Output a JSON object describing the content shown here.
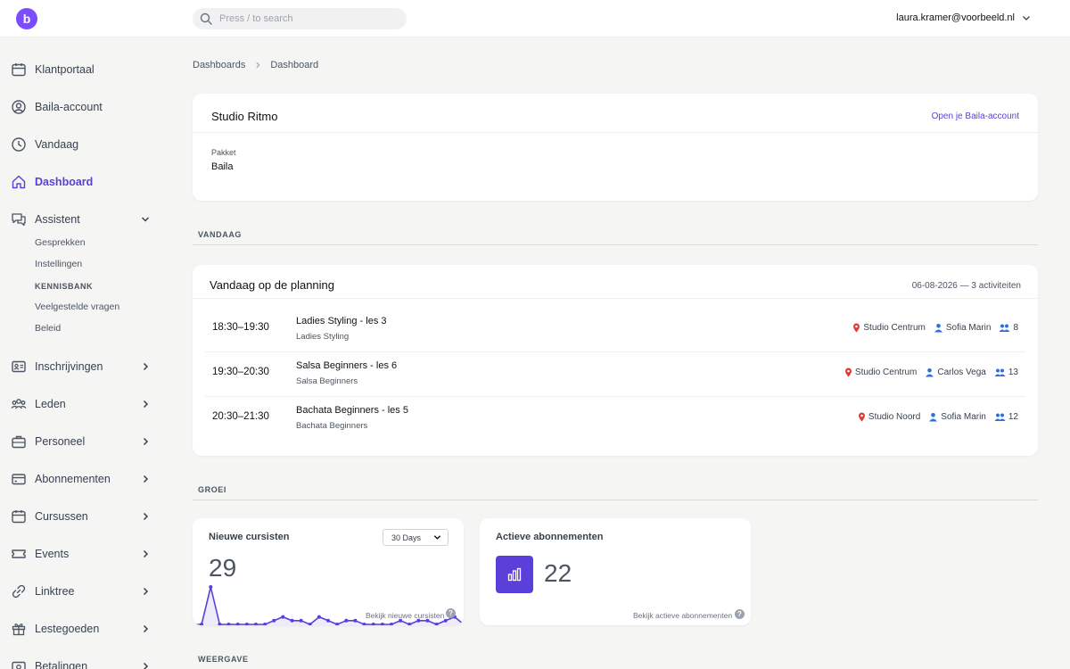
{
  "topbar": {
    "logo_letter": "b",
    "search_placeholder": "Press / to search",
    "user_email": "laura.kramer@voorbeeld.nl"
  },
  "sidebar": {
    "items": [
      {
        "label": "Klantportaal",
        "icon": "calendar-icon"
      },
      {
        "label": "Baila-account",
        "icon": "user-circle-icon"
      },
      {
        "label": "Vandaag",
        "icon": "clock-icon"
      },
      {
        "label": "Dashboard",
        "icon": "home-icon",
        "active": true
      },
      {
        "label": "Assistent",
        "icon": "chat-icon",
        "expanded": true
      },
      {
        "label": "Inschrijvingen",
        "icon": "id-card-icon"
      },
      {
        "label": "Leden",
        "icon": "users-icon"
      },
      {
        "label": "Personeel",
        "icon": "briefcase-icon"
      },
      {
        "label": "Abonnementen",
        "icon": "credit-card-icon"
      },
      {
        "label": "Cursussen",
        "icon": "calendar-icon"
      },
      {
        "label": "Events",
        "icon": "ticket-icon"
      },
      {
        "label": "Linktree",
        "icon": "link-icon"
      },
      {
        "label": "Lestegoeden",
        "icon": "gift-icon"
      },
      {
        "label": "Betalingen",
        "icon": "wallet-icon"
      }
    ],
    "assistent_sub": [
      "Gesprekken",
      "Instellingen",
      "KENNISBANK",
      "Veelgestelde vragen",
      "Beleid"
    ]
  },
  "breadcrumb": [
    "Dashboards",
    "Dashboard"
  ],
  "studio": {
    "name": "Studio Ritmo",
    "link": "Open je Baila-account",
    "pakket_label": "Pakket",
    "pakket_value": "Baila"
  },
  "sections": {
    "vandaag": "VANDAAG",
    "groei": "GROEI",
    "weergave": "WEERGAVE"
  },
  "planning": {
    "title": "Vandaag op de planning",
    "meta": "06-08-2026 — 3 activiteiten",
    "rows": [
      {
        "time": "18:30–19:30",
        "name": "Ladies Styling - les 3",
        "course": "Ladies Styling",
        "location": "Studio Centrum",
        "teacher": "Sofia Marin",
        "count": "8"
      },
      {
        "time": "19:30–20:30",
        "name": "Salsa Beginners - les 6",
        "course": "Salsa Beginners",
        "location": "Studio Centrum",
        "teacher": "Carlos Vega",
        "count": "13"
      },
      {
        "time": "20:30–21:30",
        "name": "Bachata Beginners - les 5",
        "course": "Bachata Beginners",
        "location": "Studio Noord",
        "teacher": "Sofia Marin",
        "count": "12"
      }
    ]
  },
  "nieuwe_cursisten": {
    "title": "Nieuwe cursisten",
    "range": "30 Days",
    "value": "29",
    "link": "Bekijk nieuwe cursisten",
    "series": [
      0,
      0,
      5,
      0,
      0,
      0,
      0,
      0,
      0,
      0.5,
      1,
      0.5,
      0.5,
      0,
      1,
      0.5,
      0,
      0.5,
      0.5,
      0,
      0,
      0,
      0,
      0.5,
      0,
      0.5,
      0.5,
      0,
      0.5,
      1,
      0
    ]
  },
  "actieve_abonnementen": {
    "title": "Actieve abonnementen",
    "value": "22",
    "link": "Bekijk actieve abonnementen"
  },
  "colors": {
    "accent": "#5b3fd9",
    "logo": "#7c4dff",
    "pin": "#e53935"
  }
}
